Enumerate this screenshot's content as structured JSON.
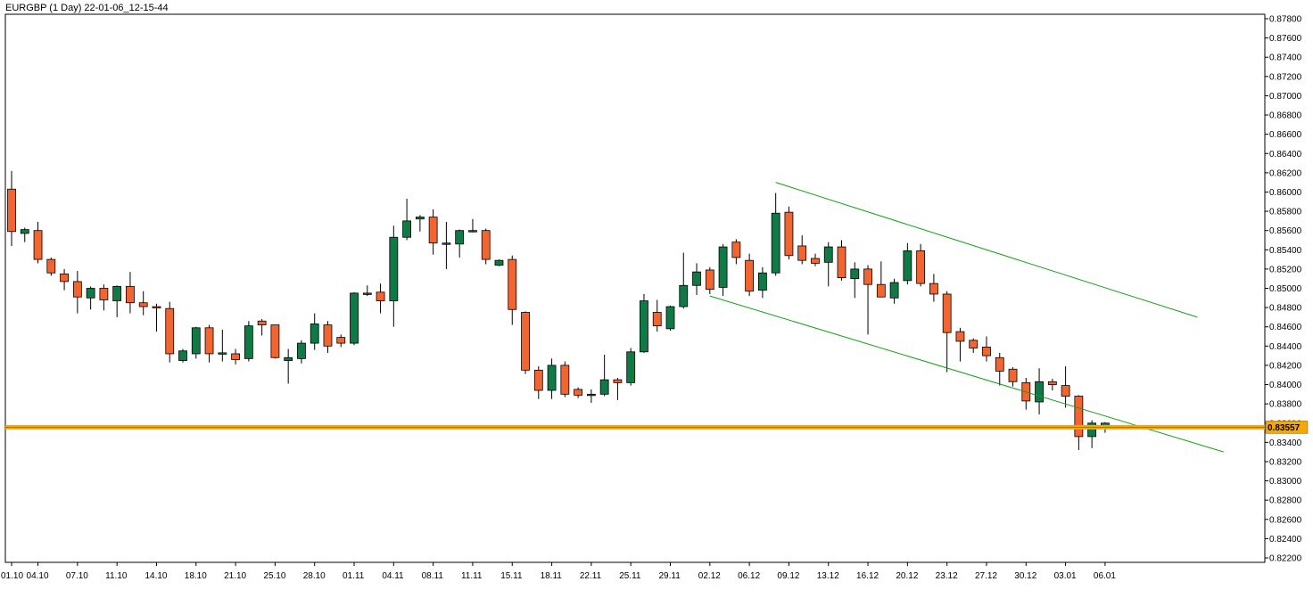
{
  "chart_data": {
    "type": "candlestick",
    "title": "EURGBP (1 Day) 22-01-06_12-15-44",
    "ylim": [
      0.822,
      0.878
    ],
    "y_ticks": [
      "0.87800",
      "0.87600",
      "0.87400",
      "0.87200",
      "0.87000",
      "0.86800",
      "0.86600",
      "0.86400",
      "0.86200",
      "0.86000",
      "0.85800",
      "0.85600",
      "0.85400",
      "0.85200",
      "0.85000",
      "0.84800",
      "0.84600",
      "0.84400",
      "0.84200",
      "0.84000",
      "0.83800",
      "0.83600",
      "0.83400",
      "0.83200",
      "0.83000",
      "0.82800",
      "0.82600",
      "0.82400",
      "0.82200"
    ],
    "x_ticks": [
      {
        "label": "01.10",
        "bar": 0
      },
      {
        "label": "04.10",
        "bar": 2
      },
      {
        "label": "07.10",
        "bar": 5
      },
      {
        "label": "11.10",
        "bar": 8
      },
      {
        "label": "14.10",
        "bar": 11
      },
      {
        "label": "18.10",
        "bar": 14
      },
      {
        "label": "21.10",
        "bar": 17
      },
      {
        "label": "25.10",
        "bar": 20
      },
      {
        "label": "28.10",
        "bar": 23
      },
      {
        "label": "01.11",
        "bar": 26
      },
      {
        "label": "04.11",
        "bar": 29
      },
      {
        "label": "08.11",
        "bar": 32
      },
      {
        "label": "11.11",
        "bar": 35
      },
      {
        "label": "15.11",
        "bar": 38
      },
      {
        "label": "18.11",
        "bar": 41
      },
      {
        "label": "22.11",
        "bar": 44
      },
      {
        "label": "25.11",
        "bar": 47
      },
      {
        "label": "29.11",
        "bar": 50
      },
      {
        "label": "02.12",
        "bar": 53
      },
      {
        "label": "06.12",
        "bar": 56
      },
      {
        "label": "09.12",
        "bar": 59
      },
      {
        "label": "13.12",
        "bar": 62
      },
      {
        "label": "16.12",
        "bar": 65
      },
      {
        "label": "20.12",
        "bar": 68
      },
      {
        "label": "23.12",
        "bar": 71
      },
      {
        "label": "27.12",
        "bar": 74
      },
      {
        "label": "30.12",
        "bar": 77
      },
      {
        "label": "03.01",
        "bar": 80
      },
      {
        "label": "06.01",
        "bar": 83
      }
    ],
    "candles": [
      {
        "o": 0.8603,
        "h": 0.8622,
        "l": 0.8544,
        "c": 0.8559
      },
      {
        "o": 0.8557,
        "h": 0.8563,
        "l": 0.8548,
        "c": 0.8561
      },
      {
        "o": 0.856,
        "h": 0.8569,
        "l": 0.8526,
        "c": 0.853
      },
      {
        "o": 0.853,
        "h": 0.8532,
        "l": 0.8513,
        "c": 0.8516
      },
      {
        "o": 0.8515,
        "h": 0.852,
        "l": 0.8498,
        "c": 0.8507
      },
      {
        "o": 0.8507,
        "h": 0.8518,
        "l": 0.8474,
        "c": 0.8491
      },
      {
        "o": 0.849,
        "h": 0.8502,
        "l": 0.8478,
        "c": 0.85
      },
      {
        "o": 0.85,
        "h": 0.8504,
        "l": 0.8477,
        "c": 0.8488
      },
      {
        "o": 0.8487,
        "h": 0.8503,
        "l": 0.847,
        "c": 0.8502
      },
      {
        "o": 0.8502,
        "h": 0.8517,
        "l": 0.8474,
        "c": 0.8485
      },
      {
        "o": 0.8485,
        "h": 0.8497,
        "l": 0.8472,
        "c": 0.8481
      },
      {
        "o": 0.8481,
        "h": 0.8484,
        "l": 0.8455,
        "c": 0.848
      },
      {
        "o": 0.8479,
        "h": 0.8486,
        "l": 0.8423,
        "c": 0.8432
      },
      {
        "o": 0.8425,
        "h": 0.8437,
        "l": 0.8423,
        "c": 0.8435
      },
      {
        "o": 0.8432,
        "h": 0.846,
        "l": 0.8427,
        "c": 0.8459
      },
      {
        "o": 0.8459,
        "h": 0.8462,
        "l": 0.8423,
        "c": 0.8432
      },
      {
        "o": 0.8432,
        "h": 0.8457,
        "l": 0.8424,
        "c": 0.8433
      },
      {
        "o": 0.8432,
        "h": 0.8437,
        "l": 0.8421,
        "c": 0.8426
      },
      {
        "o": 0.8427,
        "h": 0.8466,
        "l": 0.8424,
        "c": 0.8461
      },
      {
        "o": 0.8466,
        "h": 0.8468,
        "l": 0.8451,
        "c": 0.8462
      },
      {
        "o": 0.8462,
        "h": 0.8462,
        "l": 0.8427,
        "c": 0.8428
      },
      {
        "o": 0.8425,
        "h": 0.8437,
        "l": 0.8401,
        "c": 0.8428
      },
      {
        "o": 0.8427,
        "h": 0.8446,
        "l": 0.8422,
        "c": 0.8443
      },
      {
        "o": 0.8443,
        "h": 0.8474,
        "l": 0.8436,
        "c": 0.8463
      },
      {
        "o": 0.8462,
        "h": 0.8466,
        "l": 0.8433,
        "c": 0.844
      },
      {
        "o": 0.8449,
        "h": 0.8452,
        "l": 0.8439,
        "c": 0.8443
      },
      {
        "o": 0.8443,
        "h": 0.8496,
        "l": 0.8441,
        "c": 0.8495
      },
      {
        "o": 0.8495,
        "h": 0.8503,
        "l": 0.8492,
        "c": 0.8495
      },
      {
        "o": 0.8496,
        "h": 0.8505,
        "l": 0.8474,
        "c": 0.8487
      },
      {
        "o": 0.8487,
        "h": 0.8565,
        "l": 0.846,
        "c": 0.8553
      },
      {
        "o": 0.8553,
        "h": 0.8593,
        "l": 0.855,
        "c": 0.857
      },
      {
        "o": 0.8572,
        "h": 0.8576,
        "l": 0.8559,
        "c": 0.8574
      },
      {
        "o": 0.8574,
        "h": 0.8582,
        "l": 0.8535,
        "c": 0.8547
      },
      {
        "o": 0.8547,
        "h": 0.8569,
        "l": 0.852,
        "c": 0.8547
      },
      {
        "o": 0.8546,
        "h": 0.8561,
        "l": 0.8532,
        "c": 0.856
      },
      {
        "o": 0.856,
        "h": 0.8572,
        "l": 0.8558,
        "c": 0.856
      },
      {
        "o": 0.856,
        "h": 0.8562,
        "l": 0.8525,
        "c": 0.853
      },
      {
        "o": 0.8524,
        "h": 0.853,
        "l": 0.8523,
        "c": 0.8529
      },
      {
        "o": 0.853,
        "h": 0.8534,
        "l": 0.8462,
        "c": 0.8478
      },
      {
        "o": 0.8475,
        "h": 0.8476,
        "l": 0.8411,
        "c": 0.8415
      },
      {
        "o": 0.8415,
        "h": 0.8419,
        "l": 0.8385,
        "c": 0.8394
      },
      {
        "o": 0.8394,
        "h": 0.8427,
        "l": 0.8385,
        "c": 0.842
      },
      {
        "o": 0.842,
        "h": 0.8424,
        "l": 0.8387,
        "c": 0.839
      },
      {
        "o": 0.8395,
        "h": 0.8397,
        "l": 0.8386,
        "c": 0.8389
      },
      {
        "o": 0.8389,
        "h": 0.8395,
        "l": 0.8381,
        "c": 0.839
      },
      {
        "o": 0.839,
        "h": 0.8431,
        "l": 0.8388,
        "c": 0.8405
      },
      {
        "o": 0.8405,
        "h": 0.8407,
        "l": 0.8384,
        "c": 0.8402
      },
      {
        "o": 0.8402,
        "h": 0.8438,
        "l": 0.8399,
        "c": 0.8434
      },
      {
        "o": 0.8434,
        "h": 0.8494,
        "l": 0.8433,
        "c": 0.8487
      },
      {
        "o": 0.8475,
        "h": 0.8488,
        "l": 0.8455,
        "c": 0.8461
      },
      {
        "o": 0.8458,
        "h": 0.8482,
        "l": 0.8456,
        "c": 0.8481
      },
      {
        "o": 0.8481,
        "h": 0.8537,
        "l": 0.8479,
        "c": 0.8503
      },
      {
        "o": 0.8503,
        "h": 0.8526,
        "l": 0.8493,
        "c": 0.8517
      },
      {
        "o": 0.8519,
        "h": 0.8522,
        "l": 0.8494,
        "c": 0.8499
      },
      {
        "o": 0.8501,
        "h": 0.8546,
        "l": 0.8492,
        "c": 0.8543
      },
      {
        "o": 0.8548,
        "h": 0.8551,
        "l": 0.8525,
        "c": 0.8532
      },
      {
        "o": 0.8529,
        "h": 0.8536,
        "l": 0.8492,
        "c": 0.8497
      },
      {
        "o": 0.8498,
        "h": 0.8522,
        "l": 0.849,
        "c": 0.8516
      },
      {
        "o": 0.8516,
        "h": 0.8599,
        "l": 0.8513,
        "c": 0.8578
      },
      {
        "o": 0.8579,
        "h": 0.8585,
        "l": 0.853,
        "c": 0.8534
      },
      {
        "o": 0.8544,
        "h": 0.8555,
        "l": 0.8525,
        "c": 0.8529
      },
      {
        "o": 0.8531,
        "h": 0.8536,
        "l": 0.8523,
        "c": 0.8526
      },
      {
        "o": 0.8527,
        "h": 0.8548,
        "l": 0.8502,
        "c": 0.8543
      },
      {
        "o": 0.8543,
        "h": 0.855,
        "l": 0.8508,
        "c": 0.8511
      },
      {
        "o": 0.851,
        "h": 0.8527,
        "l": 0.849,
        "c": 0.852
      },
      {
        "o": 0.852,
        "h": 0.8524,
        "l": 0.8452,
        "c": 0.8504
      },
      {
        "o": 0.8504,
        "h": 0.8528,
        "l": 0.8491,
        "c": 0.8491
      },
      {
        "o": 0.849,
        "h": 0.851,
        "l": 0.8484,
        "c": 0.8506
      },
      {
        "o": 0.8508,
        "h": 0.8547,
        "l": 0.8504,
        "c": 0.8539
      },
      {
        "o": 0.8539,
        "h": 0.8546,
        "l": 0.8502,
        "c": 0.8505
      },
      {
        "o": 0.8505,
        "h": 0.8515,
        "l": 0.8486,
        "c": 0.8494
      },
      {
        "o": 0.8494,
        "h": 0.8497,
        "l": 0.8413,
        "c": 0.8454
      },
      {
        "o": 0.8455,
        "h": 0.8459,
        "l": 0.8424,
        "c": 0.8445
      },
      {
        "o": 0.8446,
        "h": 0.8448,
        "l": 0.8433,
        "c": 0.8438
      },
      {
        "o": 0.8439,
        "h": 0.845,
        "l": 0.8424,
        "c": 0.843
      },
      {
        "o": 0.8428,
        "h": 0.8433,
        "l": 0.8399,
        "c": 0.8414
      },
      {
        "o": 0.8416,
        "h": 0.8418,
        "l": 0.8398,
        "c": 0.8403
      },
      {
        "o": 0.8402,
        "h": 0.8407,
        "l": 0.8374,
        "c": 0.8383
      },
      {
        "o": 0.8382,
        "h": 0.8417,
        "l": 0.8369,
        "c": 0.8403
      },
      {
        "o": 0.8403,
        "h": 0.8406,
        "l": 0.8394,
        "c": 0.84
      },
      {
        "o": 0.8399,
        "h": 0.8419,
        "l": 0.8376,
        "c": 0.8388
      },
      {
        "o": 0.8388,
        "h": 0.8389,
        "l": 0.8332,
        "c": 0.8346
      },
      {
        "o": 0.8346,
        "h": 0.8363,
        "l": 0.8334,
        "c": 0.836
      },
      {
        "o": 0.8356,
        "h": 0.8361,
        "l": 0.835,
        "c": 0.836
      }
    ],
    "trendlines": [
      {
        "name": "channel-upper",
        "start": {
          "bar": 58,
          "y": 0.861
        },
        "end": {
          "bar": 90,
          "y": 0.847
        }
      },
      {
        "name": "channel-lower",
        "start": {
          "bar": 53,
          "y": 0.8492
        },
        "end": {
          "bar": 92,
          "y": 0.833
        }
      }
    ],
    "price_line": {
      "value": 0.83557,
      "label": "0.83557"
    },
    "colors": {
      "bull": "#0e7a45",
      "bear": "#f26430",
      "candle_outline": "#000000",
      "trendline": "#169e16",
      "price_line": "#f5a800",
      "price_label_bg": "#f5a800",
      "axis": "#000000"
    }
  }
}
